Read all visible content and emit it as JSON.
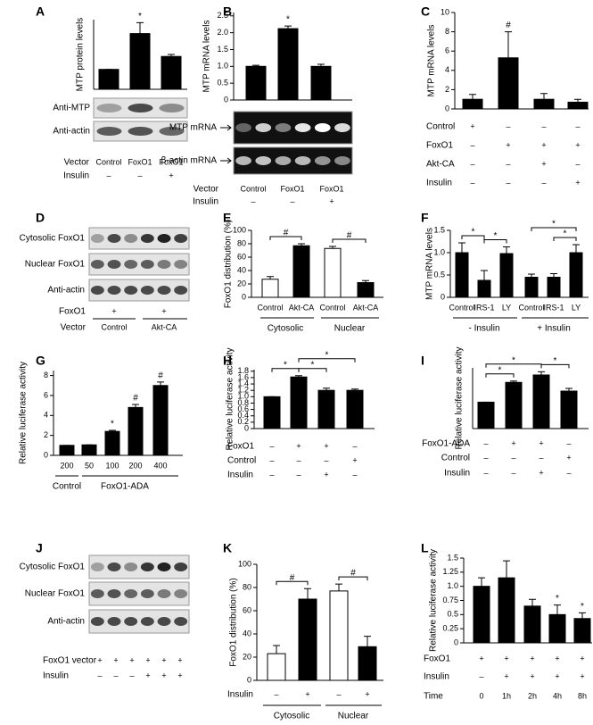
{
  "chart_data": [
    {
      "type": "bar",
      "label": "A",
      "ylabel": "MTP protein levels",
      "ylim": [
        0,
        3.5
      ],
      "values": [
        1.0,
        2.8,
        1.65
      ],
      "errors": [
        0,
        0.55,
        0.1
      ],
      "color": "#000000",
      "annotations": [
        {
          "text": "*",
          "index": 1
        }
      ],
      "blot": {
        "labels": [
          "Anti-MTP",
          "Anti-actin"
        ]
      },
      "rows": [
        {
          "name": "Vector",
          "values": [
            "Control",
            "FoxO1",
            "FoxO1"
          ]
        },
        {
          "name": "Insulin",
          "values": [
            "–",
            "–",
            "+"
          ]
        }
      ]
    },
    {
      "type": "bar",
      "label": "B",
      "ylabel": "MTP mRNA levels",
      "ylim": [
        0,
        2.6
      ],
      "yticks": [
        0,
        0.5,
        {
          "value": 1,
          "label": "1.0"
        },
        1.5,
        {
          "value": 2,
          "label": "2.0"
        },
        2.5
      ],
      "values": [
        1.0,
        2.12,
        1.0
      ],
      "errors": [
        0.03,
        0.08,
        0.06
      ],
      "color": "#000000",
      "annotations": [
        {
          "text": "*",
          "index": 1
        }
      ],
      "blot": {
        "labels": [
          "MTP mRNA",
          "β-actin mRNA"
        ]
      },
      "rows": [
        {
          "name": "Vector",
          "values": [
            "Control",
            "FoxO1",
            "FoxO1"
          ]
        },
        {
          "name": "Insulin",
          "values": [
            "–",
            "–",
            "+"
          ]
        }
      ]
    },
    {
      "type": "bar",
      "label": "C",
      "ylabel": "MTP mRNA levels",
      "ylim": [
        0,
        10
      ],
      "yticks": [
        0,
        2,
        4,
        6,
        8,
        10
      ],
      "values": [
        1.0,
        5.3,
        1.0,
        0.7
      ],
      "errors": [
        0.5,
        2.7,
        0.6,
        0.3
      ],
      "color": "#000000",
      "annotations": [
        {
          "text": "#",
          "index": 1
        }
      ],
      "rows": [
        {
          "name": "Control",
          "values": [
            "+",
            "–",
            "–",
            "–"
          ]
        },
        {
          "name": "FoxO1",
          "values": [
            "–",
            "+",
            "+",
            "+"
          ]
        },
        {
          "name": "Akt-CA",
          "values": [
            "–",
            "–",
            "+",
            "–"
          ]
        },
        {
          "name": "Insulin",
          "values": [
            "–",
            "–",
            "–",
            "+"
          ]
        }
      ]
    },
    {
      "type": "blot",
      "label": "D",
      "blot": {
        "labels": [
          "Cytosolic FoxO1",
          "Nuclear FoxO1",
          "Anti-actin"
        ]
      },
      "rows": [
        {
          "name": "FoxO1",
          "values": [
            "+",
            "+"
          ]
        },
        {
          "name": "Vector",
          "values": [
            "Control",
            "Akt-CA"
          ]
        }
      ]
    },
    {
      "type": "bar",
      "label": "E",
      "ylabel": "FoxO1 distribution (%)",
      "ylim": [
        0,
        100
      ],
      "yticks": [
        0,
        20,
        40,
        60,
        80,
        100
      ],
      "categories": [
        "Control",
        "Akt-CA",
        "Control",
        "Akt-CA"
      ],
      "groups": [
        "Cytosolic",
        "Nuclear"
      ],
      "values": [
        27,
        77,
        73,
        22
      ],
      "errors": [
        4,
        3,
        3,
        3
      ],
      "colors": [
        "#ffffff",
        "#000000",
        "#ffffff",
        "#000000"
      ],
      "annotations": [
        {
          "text": "#",
          "from": 0,
          "to": 1
        },
        {
          "text": "#",
          "from": 2,
          "to": 3
        }
      ]
    },
    {
      "type": "bar",
      "label": "F",
      "ylabel": "MTP mRNA levels",
      "ylim": [
        0,
        1.5
      ],
      "yticks": [
        0,
        0.5,
        {
          "value": 1,
          "label": "1.0"
        },
        1.5
      ],
      "categories": [
        "Control",
        "IRS-1",
        "LY",
        "Control",
        "IRS-1",
        "LY"
      ],
      "groups": [
        "- Insulin",
        "+ Insulin"
      ],
      "values": [
        1.0,
        0.38,
        0.98,
        0.45,
        0.45,
        1.0
      ],
      "errors": [
        0.22,
        0.22,
        0.15,
        0.07,
        0.08,
        0.18
      ],
      "color": "#000000",
      "annotations": [
        {
          "text": "*",
          "from": 0,
          "to": 1
        },
        {
          "text": "*",
          "from": 1,
          "to": 2
        },
        {
          "text": "*",
          "from": 4,
          "to": 5
        },
        {
          "text": "*",
          "from": 3,
          "to": 5
        }
      ]
    },
    {
      "type": "bar",
      "label": "G",
      "ylabel": "Relative luciferase activity",
      "ylim": [
        0,
        8.5
      ],
      "yticks": [
        0,
        2,
        4,
        6,
        8
      ],
      "categories": [
        "200",
        "50",
        "100",
        "200",
        "400"
      ],
      "groups": [
        "Control",
        "FoxO1-ADA"
      ],
      "values": [
        1.0,
        1.05,
        2.4,
        4.8,
        7.0
      ],
      "errors": [
        0,
        0,
        0.1,
        0.3,
        0.35
      ],
      "color": "#000000",
      "annotations": [
        {
          "text": "*",
          "index": 2
        },
        {
          "text": "#",
          "index": 3
        },
        {
          "text": "#",
          "index": 4
        }
      ]
    },
    {
      "type": "bar",
      "label": "H",
      "ylabel": "Relative luciferase activity",
      "ylim": [
        0,
        1.85
      ],
      "yticks": [
        0,
        0.2,
        0.4,
        0.6,
        0.8,
        {
          "value": 1,
          "label": "1.0"
        },
        1.2,
        1.4,
        1.6,
        1.8
      ],
      "values": [
        1.0,
        1.62,
        1.2,
        1.2
      ],
      "errors": [
        0,
        0.04,
        0.07,
        0.04
      ],
      "color": "#000000",
      "annotations": [
        {
          "text": "*",
          "from": 0,
          "to": 1
        },
        {
          "text": "*",
          "from": 1,
          "to": 2
        },
        {
          "text": "*",
          "from": 1,
          "to": 3
        }
      ],
      "rows": [
        {
          "name": "FoxO1",
          "values": [
            "–",
            "+",
            "+",
            "–"
          ]
        },
        {
          "name": "Control",
          "values": [
            "–",
            "–",
            "–",
            "+"
          ]
        },
        {
          "name": "Insulin",
          "values": [
            "–",
            "–",
            "+",
            "–"
          ]
        }
      ]
    },
    {
      "type": "bar",
      "label": "I",
      "ylabel": "Relative luciferase activity",
      "ylim": [
        0,
        2.3
      ],
      "values": [
        1.0,
        1.75,
        2.03,
        1.42
      ],
      "errors": [
        0,
        0.05,
        0.12,
        0.1
      ],
      "color": "#000000",
      "annotations": [
        {
          "text": "*",
          "from": 0,
          "to": 1
        },
        {
          "text": "*",
          "from": 0,
          "to": 2
        },
        {
          "text": "*",
          "from": 2,
          "to": 3
        }
      ],
      "rows": [
        {
          "name": "FoxO1-ADA",
          "values": [
            "–",
            "+",
            "+",
            "–"
          ]
        },
        {
          "name": "Control",
          "values": [
            "–",
            "–",
            "–",
            "+"
          ]
        },
        {
          "name": "Insulin",
          "values": [
            "–",
            "–",
            "+",
            "–"
          ]
        }
      ]
    },
    {
      "type": "blot",
      "label": "J",
      "blot": {
        "labels": [
          "Cytosolic FoxO1",
          "Nuclear FoxO1",
          "Anti-actin"
        ]
      },
      "rows": [
        {
          "name": "FoxO1 vector",
          "values": [
            "+",
            "+",
            "+",
            "+",
            "+",
            "+"
          ]
        },
        {
          "name": "Insulin",
          "values": [
            "–",
            "–",
            "–",
            "+",
            "+",
            "+"
          ]
        }
      ]
    },
    {
      "type": "bar",
      "label": "K",
      "ylabel": "FoxO1 distribution (%)",
      "ylim": [
        0,
        100
      ],
      "yticks": [
        0,
        20,
        40,
        60,
        80,
        100
      ],
      "groups": [
        "Cytosolic",
        "Nuclear"
      ],
      "values": [
        23,
        70,
        77,
        29
      ],
      "errors": [
        7,
        9,
        6,
        9
      ],
      "colors": [
        "#ffffff",
        "#000000",
        "#ffffff",
        "#000000"
      ],
      "annotations": [
        {
          "text": "#",
          "from": 0,
          "to": 1
        },
        {
          "text": "#",
          "from": 2,
          "to": 3
        }
      ],
      "rows": [
        {
          "name": "Insulin",
          "values": [
            "–",
            "+",
            "–",
            "+"
          ]
        }
      ]
    },
    {
      "type": "bar",
      "label": "L",
      "ylabel": "Relative luciferase activity",
      "ylim": [
        0,
        1.5
      ],
      "yticks": [
        0,
        0.25,
        0.5,
        0.75,
        {
          "value": 1,
          "label": "1.0"
        },
        1.25,
        1.5
      ],
      "values": [
        1.0,
        1.15,
        0.65,
        0.5,
        0.43
      ],
      "errors": [
        0.15,
        0.3,
        0.12,
        0.17,
        0.1
      ],
      "color": "#000000",
      "annotations": [
        {
          "text": "*",
          "index": 3
        },
        {
          "text": "*",
          "index": 4
        }
      ],
      "rows": [
        {
          "name": "FoxO1",
          "values": [
            "+",
            "+",
            "+",
            "+",
            "+"
          ]
        },
        {
          "name": "Insulin",
          "values": [
            "–",
            "+",
            "+",
            "+",
            "+"
          ]
        },
        {
          "name": "Time",
          "values": [
            "0",
            "1h",
            "2h",
            "4h",
            "8h"
          ]
        }
      ]
    }
  ]
}
